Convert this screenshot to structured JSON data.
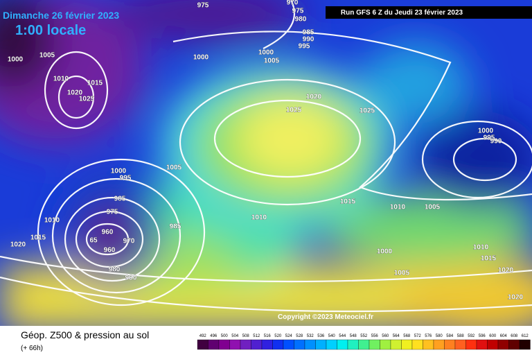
{
  "header": {
    "date": "Dimanche 26 février 2023",
    "time": "1:00 locale",
    "run": "Run GFS 6 Z du Jeudi 23 février 2023"
  },
  "map": {
    "copyright": "Copyright ©2023 Meteociel.fr",
    "isobar_labels": [
      975,
      970,
      975,
      980,
      985,
      990,
      995,
      1000,
      1005,
      1000,
      1000,
      1005,
      1010,
      1015,
      1020,
      1025,
      1020,
      1025,
      1025,
      1000,
      995,
      990,
      1005,
      1000,
      995,
      985,
      975,
      960,
      65,
      960,
      970,
      980,
      990,
      985,
      1010,
      1015,
      1020,
      1010,
      1015,
      1010,
      1005,
      1000,
      1005,
      1010,
      1015,
      1020,
      1020
    ]
  },
  "footer": {
    "title": "Géop. Z500 & pression au sol",
    "lead": "(+ 66h)",
    "scale": [
      492,
      496,
      500,
      504,
      508,
      512,
      516,
      520,
      524,
      528,
      532,
      536,
      540,
      544,
      548,
      552,
      556,
      560,
      564,
      568,
      572,
      576,
      580,
      584,
      588,
      592,
      596,
      600,
      604,
      608,
      612
    ]
  }
}
